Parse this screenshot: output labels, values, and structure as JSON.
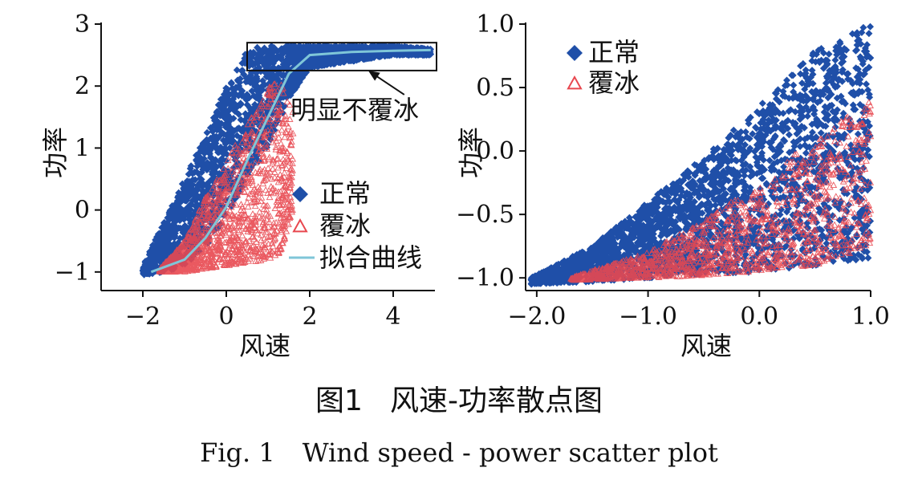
{
  "colors": {
    "normal": "#1f4fa8",
    "icing": "#e8474f",
    "fit": "#7fc6d8"
  },
  "caption": {
    "cn_label": "图1",
    "cn_title": "风速-功率散点图",
    "en_label": "Fig. 1",
    "en_title": "Wind speed - power scatter plot"
  },
  "chart_data": [
    {
      "type": "scatter",
      "xlabel": "风速",
      "ylabel": "功率",
      "xlim": [
        -3,
        5
      ],
      "ylim": [
        -1.3,
        3
      ],
      "xticks": [
        -2,
        0,
        2,
        4
      ],
      "xtick_labels": [
        "−2",
        "0",
        "2",
        "4"
      ],
      "yticks": [
        -1,
        0,
        1,
        2,
        3
      ],
      "ytick_labels": [
        "−1",
        "0",
        "1",
        "2",
        "3"
      ],
      "legend": {
        "position": "center-right",
        "entries": [
          "正常",
          "覆冰",
          "拟合曲线"
        ]
      },
      "annotation": {
        "text": "明显不覆冰",
        "box_x": [
          0.5,
          5
        ],
        "box_y": [
          2.25,
          2.7
        ],
        "arrow_to": [
          3.4,
          2.25
        ]
      },
      "series": [
        {
          "name": "正常",
          "marker": "diamond",
          "color": "#1f4fa8",
          "envelope": {
            "x": [
              -2.0,
              -1.5,
              -1.0,
              -0.5,
              0.0,
              0.5,
              1.0,
              1.5,
              2.0,
              3.0,
              4.0,
              4.9
            ],
            "lower": [
              -1.05,
              -1.0,
              -0.9,
              -0.6,
              -0.1,
              0.5,
              1.0,
              1.8,
              2.3,
              2.4,
              2.5,
              2.5
            ],
            "upper": [
              -0.9,
              -0.2,
              0.5,
              1.2,
              2.0,
              2.6,
              2.65,
              2.65,
              2.65,
              2.65,
              2.65,
              2.6
            ]
          }
        },
        {
          "name": "覆冰",
          "marker": "triangle",
          "color": "#e8474f",
          "envelope": {
            "x": [
              -1.6,
              -1.0,
              -0.5,
              0.0,
              0.5,
              1.0,
              1.3,
              1.6
            ],
            "lower": [
              -1.0,
              -1.0,
              -0.95,
              -0.9,
              -0.85,
              -0.8,
              -0.7,
              0.0
            ],
            "upper": [
              -0.95,
              -0.5,
              0.2,
              0.8,
              1.4,
              2.0,
              2.1,
              1.6
            ]
          }
        },
        {
          "name": "拟合曲线",
          "line": true,
          "color": "#7fc6d8",
          "x": [
            -1.8,
            -1.0,
            -0.5,
            0.0,
            0.5,
            1.0,
            1.5,
            2.0,
            3.0,
            4.0,
            4.9
          ],
          "y": [
            -1.0,
            -0.8,
            -0.45,
            0.05,
            0.8,
            1.5,
            2.2,
            2.5,
            2.55,
            2.57,
            2.58
          ]
        }
      ]
    },
    {
      "type": "scatter",
      "xlabel": "风速",
      "ylabel": "功率",
      "xlim": [
        -2.1,
        1.0
      ],
      "ylim": [
        -1.1,
        1.0
      ],
      "xticks": [
        -2.0,
        -1.0,
        0.0,
        1.0
      ],
      "xtick_labels": [
        "−2.0",
        "−1.0",
        "0.0",
        "1.0"
      ],
      "yticks": [
        -1.0,
        -0.5,
        0.0,
        0.5,
        1.0
      ],
      "ytick_labels": [
        "−1.0",
        "−0.5",
        "0.0",
        "0.5",
        "1.0"
      ],
      "legend": {
        "position": "top-left",
        "entries": [
          "正常",
          "覆冰"
        ]
      },
      "series": [
        {
          "name": "正常",
          "marker": "diamond",
          "color": "#1f4fa8",
          "envelope": {
            "x": [
              -2.05,
              -1.5,
              -1.0,
              -0.5,
              0.0,
              0.5,
              1.0
            ],
            "lower": [
              -1.05,
              -1.03,
              -1.0,
              -0.98,
              -0.95,
              -0.9,
              -0.85
            ],
            "upper": [
              -1.0,
              -0.75,
              -0.4,
              -0.05,
              0.35,
              0.8,
              1.0
            ]
          }
        },
        {
          "name": "覆冰",
          "marker": "triangle",
          "color": "#e8474f",
          "envelope": {
            "x": [
              -1.7,
              -1.0,
              -0.5,
              0.0,
              0.5,
              1.0
            ],
            "lower": [
              -1.02,
              -1.0,
              -0.98,
              -0.95,
              -0.9,
              -0.75
            ],
            "upper": [
              -1.0,
              -0.8,
              -0.55,
              -0.25,
              0.1,
              0.4
            ]
          }
        }
      ]
    }
  ]
}
